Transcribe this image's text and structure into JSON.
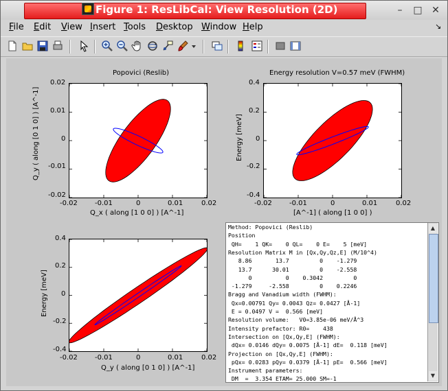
{
  "window": {
    "title": "Figure 1: ResLibCal: View Resolution (2D)",
    "controls": [
      "–",
      "□",
      "✕"
    ]
  },
  "menubar": {
    "items": [
      {
        "label": "File",
        "mnemonic": "F"
      },
      {
        "label": "Edit",
        "mnemonic": "E"
      },
      {
        "label": "View",
        "mnemonic": "V"
      },
      {
        "label": "Insert",
        "mnemonic": "I"
      },
      {
        "label": "Tools",
        "mnemonic": "T"
      },
      {
        "label": "Desktop",
        "mnemonic": "D"
      },
      {
        "label": "Window",
        "mnemonic": "W"
      },
      {
        "label": "Help",
        "mnemonic": "H"
      }
    ],
    "dock_icon": "↘"
  },
  "toolbar": {
    "icons": [
      "new-figure-icon",
      "open-file-icon",
      "save-icon",
      "print-icon",
      "pointer-icon",
      "zoom-in-icon",
      "zoom-out-icon",
      "pan-hand-icon",
      "rotate-3d-icon",
      "data-cursor-icon",
      "brush-icon",
      "brush-dropdown-icon",
      "link-plot-icon",
      "colorbar-icon",
      "legend-icon",
      "hide-plot-tools-icon",
      "show-plot-tools-icon"
    ]
  },
  "chart_data": [
    {
      "type": "area",
      "title": "Popovici (Reslib)",
      "xlabel": "Q_x ( along [1 0 0] ) [A^-1]",
      "ylabel": "Q_y ( along [0 1 0] ) [A^-1]",
      "xlim": [
        -0.02,
        0.02
      ],
      "ylim": [
        -0.02,
        0.02
      ],
      "xticks": [
        "-0.02",
        "-0.01",
        "0",
        "0.01",
        "0.02"
      ],
      "yticks": [
        "-0.02",
        "-0.01",
        "0",
        "0.01",
        "0.02"
      ],
      "ellipse": {
        "cx": 0,
        "cy": 0,
        "a": 0.0165,
        "b": 0.0053,
        "angle_deg": 60
      },
      "section": {
        "cx": 0,
        "cy": 0,
        "a": 0.0083,
        "b": 0.0015,
        "angle_deg": -30
      }
    },
    {
      "type": "area",
      "title": "Energy resolution V=0.57 meV (FWHM)",
      "xlabel": "[A^-1] ( along [1 0 0] )",
      "ylabel": "Energy [meV]",
      "xlim": [
        -0.02,
        0.02
      ],
      "ylim": [
        -0.4,
        0.4
      ],
      "xticks": [
        "-0.02",
        "-0.01",
        "0",
        "0.01",
        "0.02"
      ],
      "yticks": [
        "-0.4",
        "-0.2",
        "0",
        "0.2",
        "0.4"
      ],
      "ellipse": {
        "cx": 0,
        "cy": 0,
        "a": 0.0173,
        "b": 0.0059,
        "angle_deg": 52
      },
      "section": {
        "cx": 0,
        "cy": 0,
        "a": 0.0115,
        "b": 0.0012,
        "angle_deg": 25
      }
    },
    {
      "type": "area",
      "title": "",
      "xlabel": "Q_y ( along [0 1 0] ) [A^-1]",
      "ylabel": "Energy [meV]",
      "xlim": [
        -0.02,
        0.02
      ],
      "ylim": [
        -0.4,
        0.4
      ],
      "xticks": [
        "-0.02",
        "-0.01",
        "0",
        "0.01",
        "0.02"
      ],
      "yticks": [
        "-0.4",
        "-0.2",
        "0",
        "0.2",
        "0.4"
      ],
      "ellipse": {
        "cx": 0,
        "cy": 0,
        "a": 0.0263,
        "b": 0.0025,
        "angle_deg": 40
      },
      "section": {
        "cx": 0,
        "cy": 0,
        "a": 0.0164,
        "b": 0.0006,
        "angle_deg": 40
      }
    }
  ],
  "colors": {
    "ellipse_fill": "#ff0000",
    "ellipse_stroke": "#000000",
    "section_stroke": "#0000ff"
  },
  "info": {
    "lines": [
      "Method: Popovici (Reslib)",
      "Position",
      " QH=    1 QK=    0 QL=    0 E=    5 [meV]",
      "Resolution Matrix M in [Qx,Qy,Qz,E] (M/10^4)",
      "   8.86       13.7         0    -1.279",
      "   13.7      30.01         0    -2.558",
      "      0          0    0.3042         0",
      " -1.279     -2.558         0    0.2246",
      "Bragg and Vanadium width (FWHM):",
      " Qx=0.00791 Qy= 0.0043 Qz= 0.0427 [Å-1]",
      " E = 0.0497 V =  0.566 [meV]",
      "Resolution volume:   V0=3.85e-06 meV/Å^3",
      "Intensity prefactor: R0=    438",
      "Intersection on [Qx,Qy,E] (FWHM):",
      " dQx= 0.0146 dQy= 0.0075 [Å-1] dE=  0.118 [meV]",
      "Projection on [Qx,Qy,E] (FWHM):",
      " pQx= 0.0283 pQy= 0.0379 [Å-1] pE=  0.566 [meV]",
      "Instrument parameters:",
      " DM  =  3.354 ETAM= 25.000 SM=-1"
    ]
  }
}
